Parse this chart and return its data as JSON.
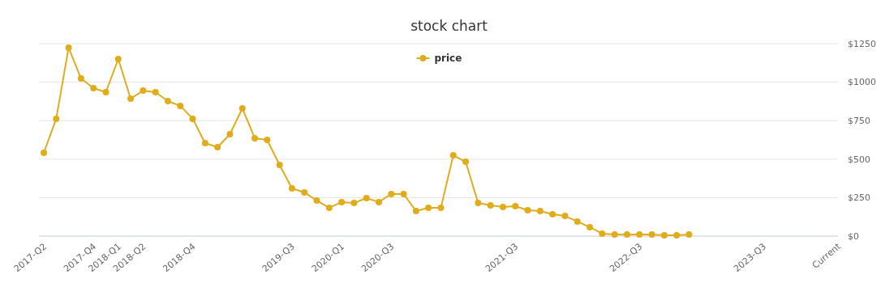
{
  "chart_data": {
    "type": "line",
    "title": "stock chart",
    "categories": [
      "2017-Q2",
      null,
      null,
      null,
      "2017-Q4",
      null,
      "2018-Q1",
      null,
      "2018-Q2",
      null,
      null,
      null,
      "2018-Q4",
      null,
      null,
      null,
      null,
      null,
      null,
      null,
      "2019-Q3",
      null,
      null,
      null,
      "2020-Q1",
      null,
      null,
      null,
      "2020-Q3",
      null,
      null,
      null,
      null,
      null,
      null,
      null,
      null,
      null,
      "2021-Q3",
      null,
      null,
      null,
      null,
      null,
      null,
      null,
      null,
      null,
      "2022-Q3",
      null,
      null,
      null,
      null,
      null,
      null,
      null,
      null,
      null,
      "2023-Q3",
      null,
      null,
      null,
      null,
      null,
      "Current"
    ],
    "series": [
      {
        "name": "price",
        "color": "#e0ac1c",
        "values": [
          541,
          762,
          1224,
          1024,
          961,
          935,
          1150,
          893,
          945,
          935,
          877,
          846,
          762,
          604,
          578,
          662,
          830,
          636,
          625,
          462,
          310,
          284,
          231,
          184,
          221,
          215,
          247,
          221,
          273,
          273,
          163,
          184,
          184,
          525,
          483,
          215,
          200,
          189,
          194,
          168,
          163,
          142,
          131,
          95,
          58,
          16,
          10,
          10,
          10,
          10,
          5,
          5,
          10,
          null,
          null,
          null,
          null,
          null,
          null,
          null,
          null,
          null,
          null,
          null,
          null
        ]
      }
    ],
    "ylim": [
      0,
      1250
    ],
    "yticks": [
      {
        "value": 0,
        "label": "$0"
      },
      {
        "value": 250,
        "label": "$250"
      },
      {
        "value": 500,
        "label": "$500"
      },
      {
        "value": 750,
        "label": "$750"
      },
      {
        "value": 1000,
        "label": "$1000"
      },
      {
        "value": 1250,
        "label": "$1250"
      }
    ],
    "grid": "y",
    "legend": "top",
    "marker": "circle",
    "line_style": "solid"
  }
}
